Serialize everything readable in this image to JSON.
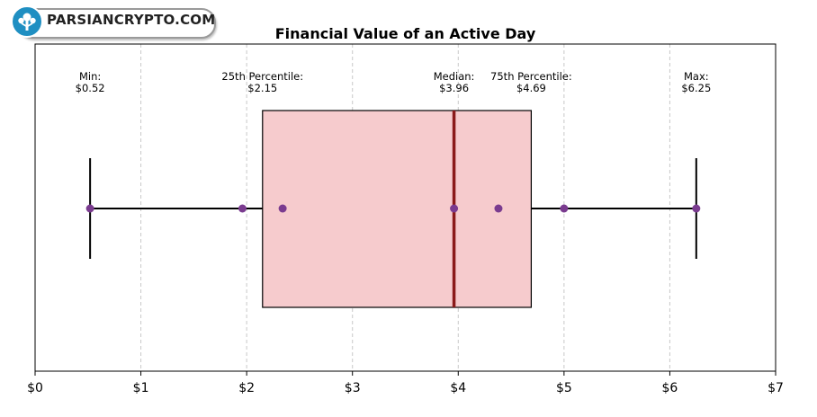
{
  "logo": {
    "text": "PARSIANCRYPTO.COM",
    "icon": "tree-icon",
    "color": "#1f8fc2"
  },
  "chart_data": {
    "type": "boxplot",
    "title": "Financial Value of an Active Day",
    "xlabel": "",
    "ylabel": "",
    "xlim": [
      0,
      7
    ],
    "x_ticks": [
      0,
      1,
      2,
      3,
      4,
      5,
      6,
      7
    ],
    "x_tick_labels": [
      "$0",
      "$1",
      "$2",
      "$3",
      "$4",
      "$5",
      "$6",
      "$7"
    ],
    "grid": "vertical dashed",
    "stats": {
      "min": 0.52,
      "q1": 2.15,
      "median": 3.96,
      "q3": 4.69,
      "max": 6.25
    },
    "points": [
      0.52,
      1.96,
      2.34,
      3.96,
      4.38,
      5.0,
      6.25
    ],
    "annotations": [
      {
        "label": "Min:",
        "value": "$0.52",
        "x": 0.52
      },
      {
        "label": "25th Percentile:",
        "value": "$2.15",
        "x": 2.15
      },
      {
        "label": "Median:",
        "value": "$3.96",
        "x": 3.96
      },
      {
        "label": "75th Percentile:",
        "value": "$4.69",
        "x": 4.69
      },
      {
        "label": "Max:",
        "value": "$6.25",
        "x": 6.25
      }
    ],
    "colors": {
      "box_fill": "#f6cbcd",
      "box_edge": "#000000",
      "median": "#8b1a1a",
      "points": "#7a3b8f",
      "whisker": "#000000",
      "grid": "#c8c8c8"
    }
  }
}
